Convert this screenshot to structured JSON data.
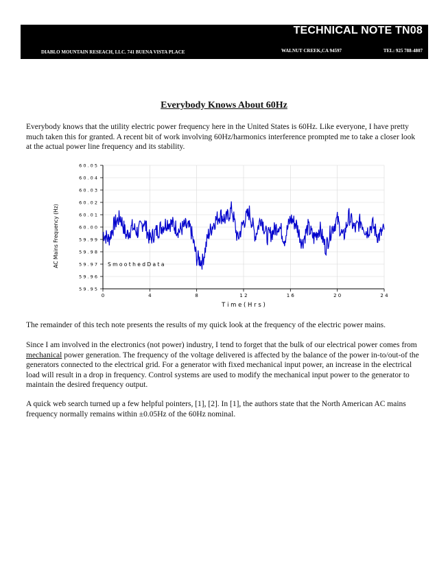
{
  "header": {
    "title": "TECHNICAL NOTE TN08",
    "company": "DIABLO MOUNTAIN RESEACH, LLC.  741 BUENA VISTA PLACE",
    "city": "WALNUT CREEK,CA  94597",
    "phone": "TEL: 925  788-4807",
    "background_color": "#000000"
  },
  "document": {
    "title": "Everybody Knows About 60Hz",
    "paragraph1": "Everybody knows that the utility electric power frequency here in the United States is 60Hz.  Like everyone, I have pretty much taken this for granted.  A recent bit of work involving 60Hz/harmonics interference prompted me to take a closer look at the actual power line frequency and its stability.",
    "paragraph2": "The remainder of this tech note presents the results of my quick look at the frequency of the electric power mains.",
    "paragraph3_before": "Since I am involved in the electronics (not power) industry, I tend to forget that the bulk of our electrical power comes from ",
    "paragraph3_underlined": "mechanical",
    "paragraph3_after": " power generation.  The frequency of the voltage delivered is affected by the balance of the power in-to/out-of the generators connected to the electrical grid.   For a generator with fixed mechanical input power, an  increase in the electrical load will result in a drop in frequency.  Control systems are used to modify the mechanical input power to the generator to maintain the desired frequency output.",
    "paragraph4": "A quick web search turned up a few helpful pointers, [1], [2].  In [1], the authors state that the North American AC mains frequency normally remains within ±0.05Hz of the 60Hz nominal."
  },
  "chart_data": {
    "type": "line",
    "xlabel": "T i m e  ( H r s )",
    "ylabel": "AC Mains Frequency (Hz)",
    "annotation": "S m o o t h e d  D a t a",
    "xlim": [
      0,
      24
    ],
    "ylim": [
      59.95,
      60.05
    ],
    "x_ticks": [
      0,
      4,
      8,
      12,
      16,
      20,
      24
    ],
    "x_tick_labels": [
      "0",
      "4",
      "8",
      "1 2",
      "1 6",
      "2 0",
      "2 4"
    ],
    "y_ticks": [
      59.95,
      59.96,
      59.97,
      59.98,
      59.99,
      60.0,
      60.01,
      60.02,
      60.03,
      60.04,
      60.05
    ],
    "y_tick_labels": [
      "5 9 . 9 5",
      "5 9 . 9 6",
      "5 9 . 9 7",
      "5 9 . 9 8",
      "5 9 . 9 9",
      "6 0 . 0 0",
      "6 0 . 0 1",
      "6 0 . 0 2",
      "6 0 . 0 3",
      "6 0 . 0 4",
      "6 0 . 0 5"
    ],
    "grid": true,
    "line_color": "#0000cc",
    "series": [
      {
        "x": [
          0,
          0.5,
          1,
          1.5,
          2,
          2.5,
          3,
          3.5,
          4,
          4.5,
          5,
          5.5,
          6,
          6.5,
          7,
          7.5,
          8,
          8.5,
          9,
          9.5,
          10,
          10.5,
          11,
          11.5,
          12,
          12.5,
          13,
          13.5,
          14,
          14.5,
          15,
          15.5,
          16,
          16.5,
          17,
          17.5,
          18,
          18.5,
          19,
          19.5,
          20,
          20.5,
          21,
          21.5,
          22,
          22.5,
          23,
          23.5,
          24
        ],
        "y": [
          59.995,
          59.99,
          60.003,
          60.008,
          59.993,
          60.0,
          59.996,
          60.005,
          59.99,
          59.996,
          60.0,
          60.004,
          60.002,
          59.997,
          60.001,
          59.998,
          59.975,
          59.972,
          59.994,
          60.004,
          60.01,
          60.006,
          60.015,
          59.99,
          60.004,
          60.012,
          59.993,
          60.008,
          59.992,
          59.996,
          60.002,
          59.99,
          60.007,
          60.002,
          59.987,
          60.0,
          59.991,
          59.999,
          59.983,
          59.998,
          60.006,
          59.991,
          60.009,
          59.998,
          60.005,
          59.996,
          60.002,
          59.992,
          59.998
        ]
      }
    ]
  }
}
